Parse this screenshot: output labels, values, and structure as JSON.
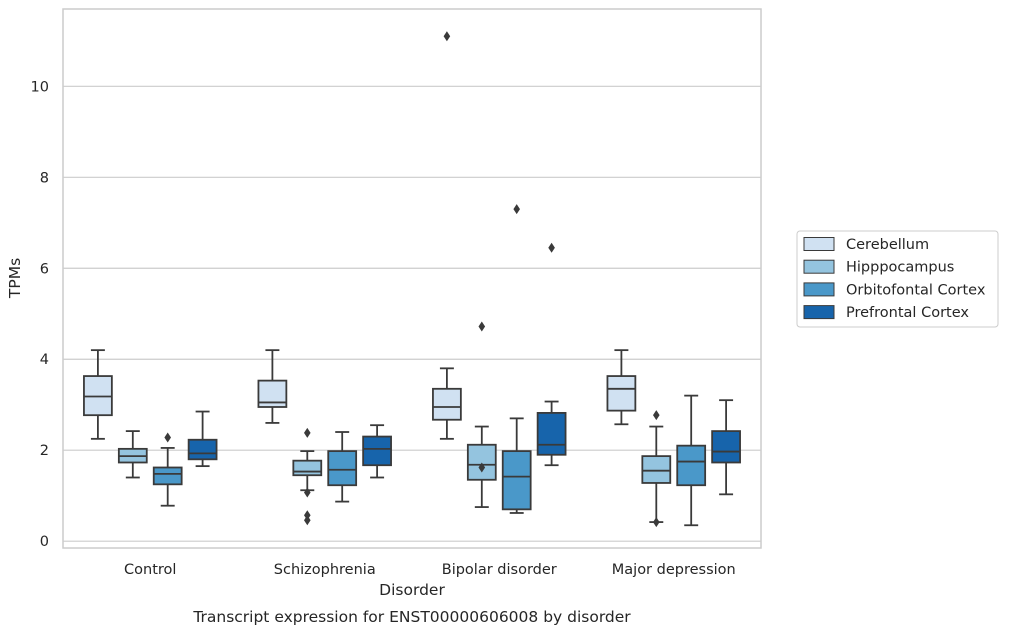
{
  "chart_data": {
    "type": "box",
    "title": "",
    "caption": "Transcript expression for ENST00000606008 by disorder",
    "xlabel": "Disorder",
    "ylabel": "TPMs",
    "ylim": [
      -0.15,
      11.7
    ],
    "yticks": [
      0,
      2,
      4,
      6,
      8,
      10
    ],
    "grid": "horizontal",
    "legend_position": "right",
    "categories": [
      "Control",
      "Schizophrenia",
      "Bipolar disorder",
      "Major depression"
    ],
    "series": [
      {
        "name": "Cerebellum",
        "color": "#d0e1f2",
        "boxes": [
          {
            "whisker_low": 2.25,
            "q1": 2.77,
            "median": 3.18,
            "q3": 3.63,
            "whisker_high": 4.2,
            "outliers": []
          },
          {
            "whisker_low": 2.6,
            "q1": 2.95,
            "median": 3.05,
            "q3": 3.53,
            "whisker_high": 4.2,
            "outliers": []
          },
          {
            "whisker_low": 2.25,
            "q1": 2.67,
            "median": 2.95,
            "q3": 3.35,
            "whisker_high": 3.8,
            "outliers": [
              11.1
            ]
          },
          {
            "whisker_low": 2.57,
            "q1": 2.87,
            "median": 3.35,
            "q3": 3.63,
            "whisker_high": 4.2,
            "outliers": []
          }
        ]
      },
      {
        "name": "Hipppocampus",
        "color": "#94c4df",
        "boxes": [
          {
            "whisker_low": 1.4,
            "q1": 1.73,
            "median": 1.87,
            "q3": 2.03,
            "whisker_high": 2.42,
            "outliers": []
          },
          {
            "whisker_low": 1.12,
            "q1": 1.45,
            "median": 1.53,
            "q3": 1.77,
            "whisker_high": 1.98,
            "outliers": [
              2.38,
              1.07,
              0.57,
              0.46
            ]
          },
          {
            "whisker_low": 0.75,
            "q1": 1.35,
            "median": 1.68,
            "q3": 2.12,
            "whisker_high": 2.52,
            "outliers": [
              1.62,
              4.72
            ]
          },
          {
            "whisker_low": 0.42,
            "q1": 1.28,
            "median": 1.55,
            "q3": 1.87,
            "whisker_high": 2.52,
            "outliers": [
              2.77,
              0.42
            ]
          }
        ]
      },
      {
        "name": "Orbitofontal Cortex",
        "color": "#4a98c9",
        "boxes": [
          {
            "whisker_low": 0.78,
            "q1": 1.25,
            "median": 1.48,
            "q3": 1.62,
            "whisker_high": 2.05,
            "outliers": [
              2.28
            ]
          },
          {
            "whisker_low": 0.87,
            "q1": 1.23,
            "median": 1.57,
            "q3": 1.98,
            "whisker_high": 2.4,
            "outliers": []
          },
          {
            "whisker_low": 0.62,
            "q1": 0.7,
            "median": 1.42,
            "q3": 1.98,
            "whisker_high": 2.7,
            "outliers": [
              7.3
            ]
          },
          {
            "whisker_low": 0.35,
            "q1": 1.23,
            "median": 1.75,
            "q3": 2.1,
            "whisker_high": 3.2,
            "outliers": []
          }
        ]
      },
      {
        "name": "Prefrontal Cortex",
        "color": "#1764ab",
        "boxes": [
          {
            "whisker_low": 1.65,
            "q1": 1.8,
            "median": 1.93,
            "q3": 2.23,
            "whisker_high": 2.85,
            "outliers": []
          },
          {
            "whisker_low": 1.4,
            "q1": 1.67,
            "median": 2.03,
            "q3": 2.3,
            "whisker_high": 2.55,
            "outliers": []
          },
          {
            "whisker_low": 1.67,
            "q1": 1.9,
            "median": 2.12,
            "q3": 2.82,
            "whisker_high": 3.07,
            "outliers": [
              6.45
            ]
          },
          {
            "whisker_low": 1.03,
            "q1": 1.73,
            "median": 1.97,
            "q3": 2.42,
            "whisker_high": 3.1,
            "outliers": []
          }
        ]
      }
    ]
  },
  "colors": {
    "grid": "#cccccc",
    "axes_border": "#cccccc",
    "box_edge": "#3a3a3a"
  }
}
